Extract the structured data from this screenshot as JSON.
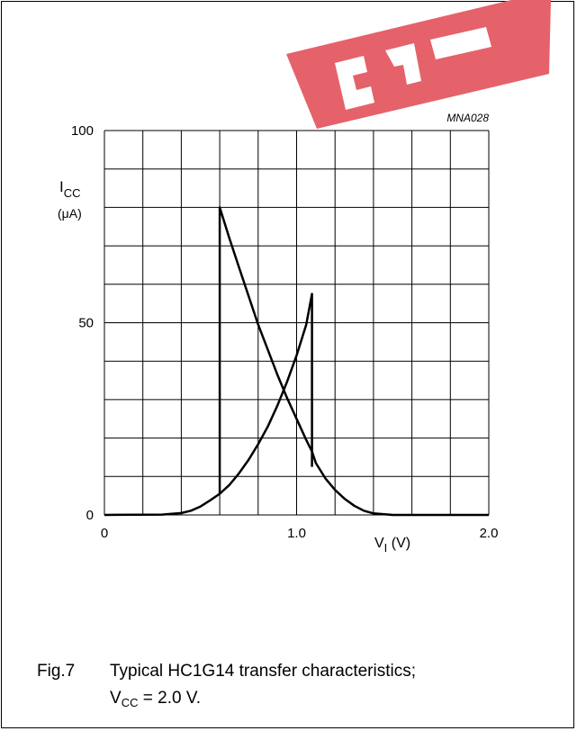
{
  "chart_data": {
    "type": "line",
    "figure_code": "MNA028",
    "ylabel_main": "I",
    "ylabel_sub": "CC",
    "ylabel_unit": "(μA)",
    "xlabel_main": "V",
    "xlabel_sub": "I",
    "xlabel_unit": " (V)",
    "xlim": [
      0,
      2.0
    ],
    "ylim": [
      0,
      100
    ],
    "grid": true,
    "x_tick_labels": [
      {
        "value": 0,
        "label": "0"
      },
      {
        "value": 1.0,
        "label": "1.0"
      },
      {
        "value": 2.0,
        "label": "2.0"
      }
    ],
    "y_tick_labels": [
      {
        "value": 0,
        "label": "0"
      },
      {
        "value": 50,
        "label": "50"
      },
      {
        "value": 100,
        "label": "100"
      }
    ],
    "series": [
      {
        "x": [
          0,
          0.3,
          0.4,
          0.45,
          0.5,
          0.55,
          0.6,
          0.6,
          0.65,
          0.7,
          0.75,
          0.8,
          0.85,
          0.9,
          0.95,
          1.0,
          1.05,
          1.08,
          1.08
        ],
        "y": [
          0,
          0.1,
          0.5,
          1.1,
          2.2,
          3.8,
          5.5,
          5.5,
          7.8,
          10.8,
          14.3,
          18.4,
          23.0,
          28.4,
          34.6,
          41.5,
          49.5,
          57.5,
          12.5
        ]
      },
      {
        "x": [
          0.6,
          0.6,
          0.65,
          0.7,
          0.75,
          0.8,
          0.85,
          0.9,
          0.95,
          1.0,
          1.05,
          1.08,
          1.1,
          1.15,
          1.2,
          1.25,
          1.3,
          1.35,
          1.4,
          1.5,
          2.0
        ],
        "y": [
          5.5,
          80,
          72,
          64.5,
          57,
          49.5,
          43,
          36.5,
          30.5,
          25,
          19.5,
          16.5,
          13.5,
          9.5,
          6.5,
          4.2,
          2.4,
          1.1,
          0.4,
          0,
          0
        ]
      }
    ]
  },
  "caption": {
    "fig_label": "Fig.7",
    "text": "Typical HC1G14 transfer characteristics;",
    "line2_main": "V",
    "line2_sub": "CC",
    "line2_rest": " = 2.0 V."
  },
  "colors": {
    "line": "#000000",
    "grid": "#000000",
    "watermark": "#e5626a"
  }
}
